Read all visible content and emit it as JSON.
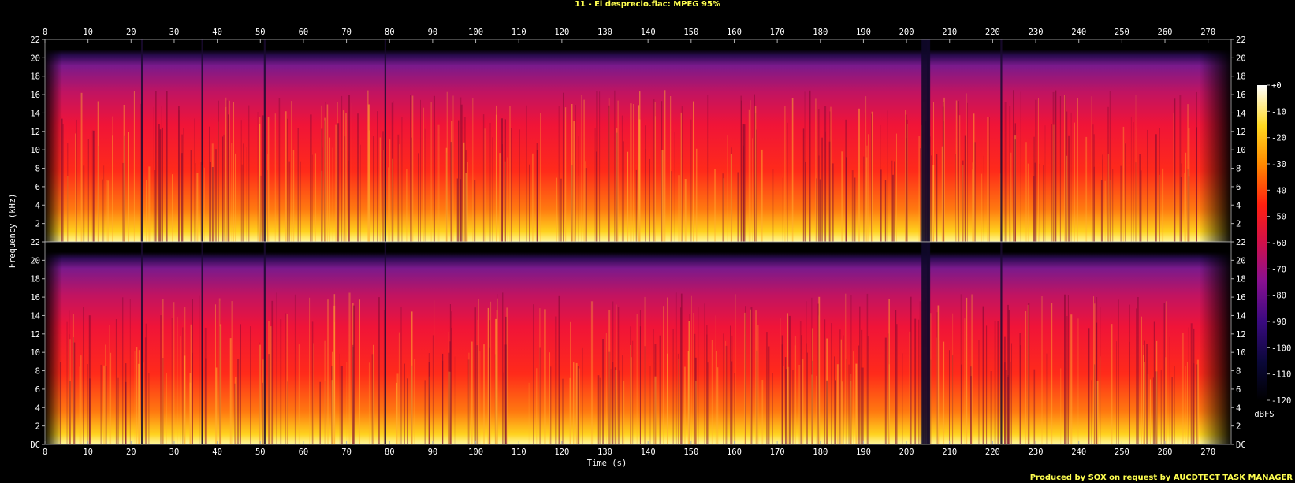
{
  "title": "11 - El desprecio.flac: MPEG 95%",
  "footer": "Produced by SOX on request by AUCDTECT TASK MANAGER",
  "chart_data": {
    "type": "heatmap",
    "title": "11 - El desprecio.flac: MPEG 95%",
    "xlabel": "Time (s)",
    "ylabel": "Frequency (kHz)",
    "xlim": [
      0,
      275
    ],
    "ylim": [
      0,
      22
    ],
    "x_ticks": [
      "0",
      "10",
      "20",
      "30",
      "40",
      "50",
      "60",
      "70",
      "80",
      "90",
      "100",
      "110",
      "120",
      "130",
      "140",
      "150",
      "160",
      "170",
      "180",
      "190",
      "200",
      "210",
      "220",
      "230",
      "240",
      "250",
      "260",
      "270"
    ],
    "y_ticks": [
      "DC",
      "2",
      "4",
      "6",
      "8",
      "10",
      "12",
      "14",
      "16",
      "18",
      "20",
      "22"
    ],
    "channels": 2,
    "spectral_cutoff_khz": 20.5,
    "colorbar": {
      "label": "dBFS",
      "range": [
        -120,
        0
      ],
      "ticks": [
        "+0",
        "-10",
        "-20",
        "-30",
        "-40",
        "-50",
        "-60",
        "-70",
        "-80",
        "-90",
        "-100",
        "-110",
        "-120"
      ]
    }
  }
}
